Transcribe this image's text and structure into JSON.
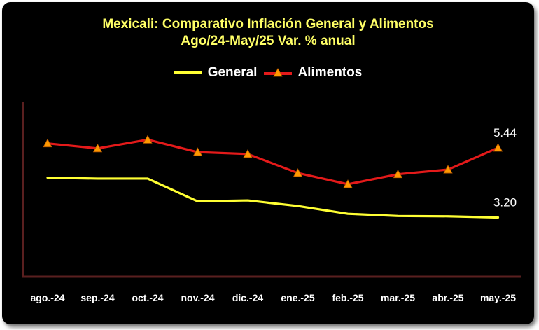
{
  "chart_data": {
    "type": "line",
    "title_line1": "Mexicali: Comparativo Inflación General y Alimentos",
    "title_line2": "Ago/24-May/25 Var. % anual",
    "categories": [
      "ago.-24",
      "sep.-24",
      "oct.-24",
      "nov.-24",
      "dic.-24",
      "ene.-25",
      "feb.-25",
      "mar.-25",
      "abr.-25",
      "may.-25"
    ],
    "series": [
      {
        "name": "General",
        "color": "#ffff33",
        "marker": "none",
        "values": [
          4.48,
          4.45,
          4.45,
          3.72,
          3.75,
          3.57,
          3.32,
          3.25,
          3.24,
          3.2
        ]
      },
      {
        "name": "Alimentos",
        "color": "#e41a1a",
        "marker": "triangle",
        "marker_color": "#ff9900",
        "values": [
          5.58,
          5.42,
          5.7,
          5.3,
          5.24,
          4.63,
          4.27,
          4.59,
          4.74,
          5.44
        ]
      }
    ],
    "data_labels": {
      "General": "3.20",
      "Alimentos": "5.44"
    },
    "ylim": [
      1.3,
      6.9
    ],
    "grid": false,
    "legend_position": "top"
  }
}
